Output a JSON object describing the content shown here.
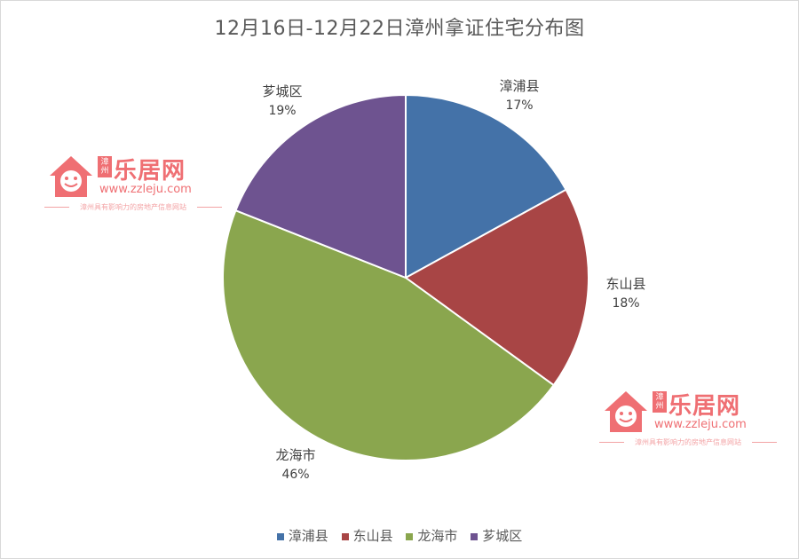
{
  "chart_data": {
    "type": "pie",
    "title": "12月16日-12月22日漳州拿证住宅分布图",
    "categories": [
      "漳浦县",
      "东山县",
      "龙海市",
      "芗城区"
    ],
    "values": [
      17,
      18,
      46,
      19
    ],
    "labels": [
      "17%",
      "18%",
      "46%",
      "19%"
    ],
    "colors": [
      "#4472a8",
      "#a84545",
      "#8aa64e",
      "#6e5390"
    ],
    "legend_position": "bottom"
  },
  "watermark": {
    "brand": "乐居网",
    "sub_brand": "漳州",
    "url": "www.zzleju.com",
    "tagline": "漳州具有影响力的房地产信息网站"
  }
}
